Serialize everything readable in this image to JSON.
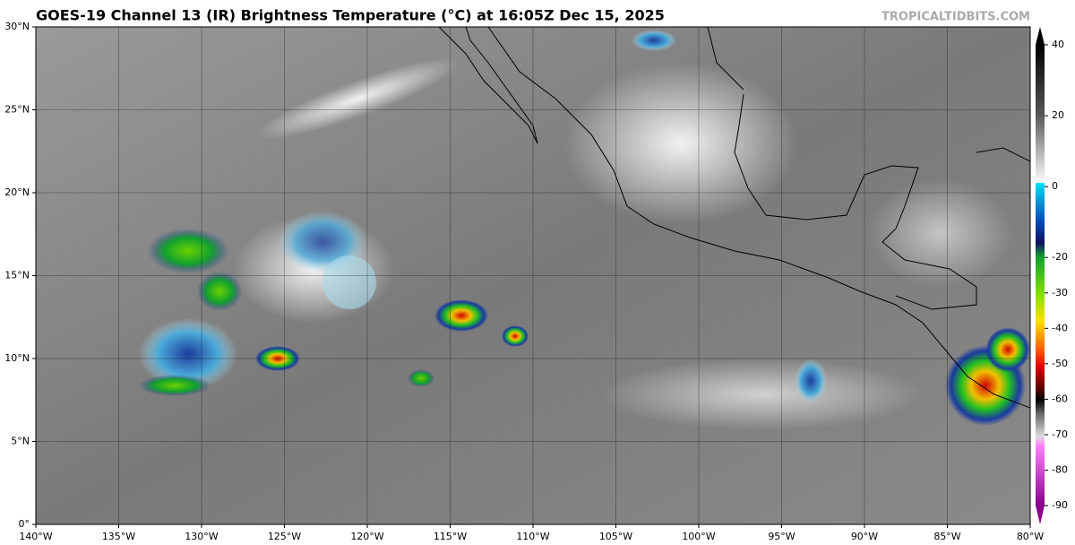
{
  "chart_data": {
    "type": "map",
    "title": "GOES-19 Channel 13 (IR) Brightness Temperature (°C) at 16:05Z Dec 15, 2025",
    "watermark": "TROPICALTIDBITS.COM",
    "xlim": [
      -140,
      -80
    ],
    "xticks": [
      {
        "value": -140,
        "label": "140°W"
      },
      {
        "value": -135,
        "label": "135°W"
      },
      {
        "value": -130,
        "label": "130°W"
      },
      {
        "value": -125,
        "label": "125°W"
      },
      {
        "value": -120,
        "label": "120°W"
      },
      {
        "value": -115,
        "label": "115°W"
      },
      {
        "value": -110,
        "label": "110°W"
      },
      {
        "value": -105,
        "label": "105°W"
      },
      {
        "value": -100,
        "label": "100°W"
      },
      {
        "value": -95,
        "label": "95°W"
      },
      {
        "value": -90,
        "label": "90°W"
      },
      {
        "value": -85,
        "label": "85°W"
      },
      {
        "value": -80,
        "label": "80°W"
      }
    ],
    "ylim": [
      0,
      30
    ],
    "yticks": [
      {
        "value": 0,
        "label": "0°"
      },
      {
        "value": 5,
        "label": "5°N"
      },
      {
        "value": 10,
        "label": "10°N"
      },
      {
        "value": 15,
        "label": "15°N"
      },
      {
        "value": 20,
        "label": "20°N"
      },
      {
        "value": 25,
        "label": "25°N"
      },
      {
        "value": 30,
        "label": "30°N"
      }
    ],
    "grid": true,
    "colorbar": {
      "lim": [
        -90,
        40
      ],
      "ticks": [
        40,
        20,
        0,
        -20,
        -30,
        -40,
        -50,
        -60,
        -70,
        -80,
        -90
      ]
    }
  }
}
